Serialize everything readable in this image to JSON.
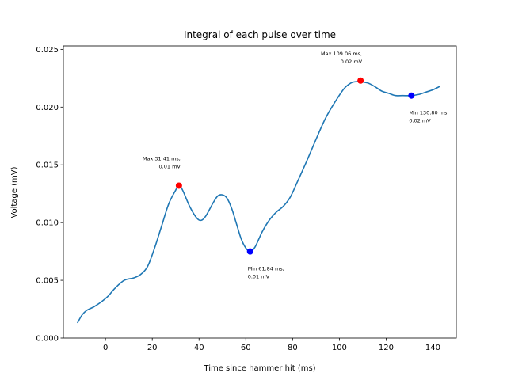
{
  "chart_data": {
    "type": "line",
    "title": "Integral of each pulse over time",
    "xlabel": "Time since hammer hit (ms)",
    "ylabel": "Voltage (mV)",
    "xlim": [
      -18,
      150
    ],
    "ylim": [
      0.0,
      0.0253
    ],
    "xticks": [
      0,
      20,
      40,
      60,
      80,
      100,
      120,
      140
    ],
    "yticks": [
      0.0,
      0.005,
      0.01,
      0.015,
      0.02,
      0.025
    ],
    "xtick_labels": [
      "0",
      "20",
      "40",
      "60",
      "80",
      "100",
      "120",
      "140"
    ],
    "ytick_labels": [
      "0.000",
      "0.005",
      "0.010",
      "0.015",
      "0.020",
      "0.025"
    ],
    "grid": false,
    "series": [
      {
        "color": "#1f77b4",
        "x": [
          -12,
          -10,
          -8,
          -5,
          -2,
          1,
          4,
          8,
          12,
          15,
          18,
          21,
          24,
          27,
          30,
          31.41,
          33,
          36,
          39,
          41,
          43,
          46,
          48,
          50,
          52,
          54,
          56,
          58,
          60,
          61.84,
          64,
          67,
          70,
          73,
          76,
          79,
          82,
          86,
          90,
          94,
          98,
          102,
          105,
          107,
          109.06,
          112,
          115,
          118,
          121,
          124,
          127,
          130.8,
          134,
          137,
          140,
          143
        ],
        "y": [
          0.0013,
          0.002,
          0.0024,
          0.0027,
          0.0031,
          0.0036,
          0.0043,
          0.005,
          0.0052,
          0.0055,
          0.0062,
          0.0078,
          0.0097,
          0.0116,
          0.0128,
          0.0132,
          0.0128,
          0.0114,
          0.0104,
          0.0102,
          0.0106,
          0.0117,
          0.0123,
          0.0124,
          0.0121,
          0.0112,
          0.0099,
          0.0086,
          0.0078,
          0.0075,
          0.0079,
          0.0092,
          0.0102,
          0.0109,
          0.0114,
          0.0122,
          0.0135,
          0.0153,
          0.0172,
          0.019,
          0.0204,
          0.0216,
          0.0221,
          0.0222,
          0.0222,
          0.0221,
          0.0218,
          0.0214,
          0.0212,
          0.021,
          0.021,
          0.021,
          0.0211,
          0.0213,
          0.0215,
          0.0218
        ]
      }
    ],
    "markers": [
      {
        "kind": "max",
        "x": 31.41,
        "y": 0.0132,
        "color": "#ff0000",
        "label_lines": [
          "Max 31.41 ms,",
          "0.01 mV"
        ]
      },
      {
        "kind": "min",
        "x": 61.84,
        "y": 0.0075,
        "color": "#0000ff",
        "label_lines": [
          "Min 61.84 ms,",
          " 0.01 mV"
        ]
      },
      {
        "kind": "max",
        "x": 109.06,
        "y": 0.0223,
        "color": "#ff0000",
        "label_lines": [
          "Max 109.06 ms,",
          "0.02 mV"
        ]
      },
      {
        "kind": "min",
        "x": 130.8,
        "y": 0.021,
        "color": "#0000ff",
        "label_lines": [
          "Min 130.80 ms,",
          " 0.02 mV"
        ]
      }
    ]
  }
}
